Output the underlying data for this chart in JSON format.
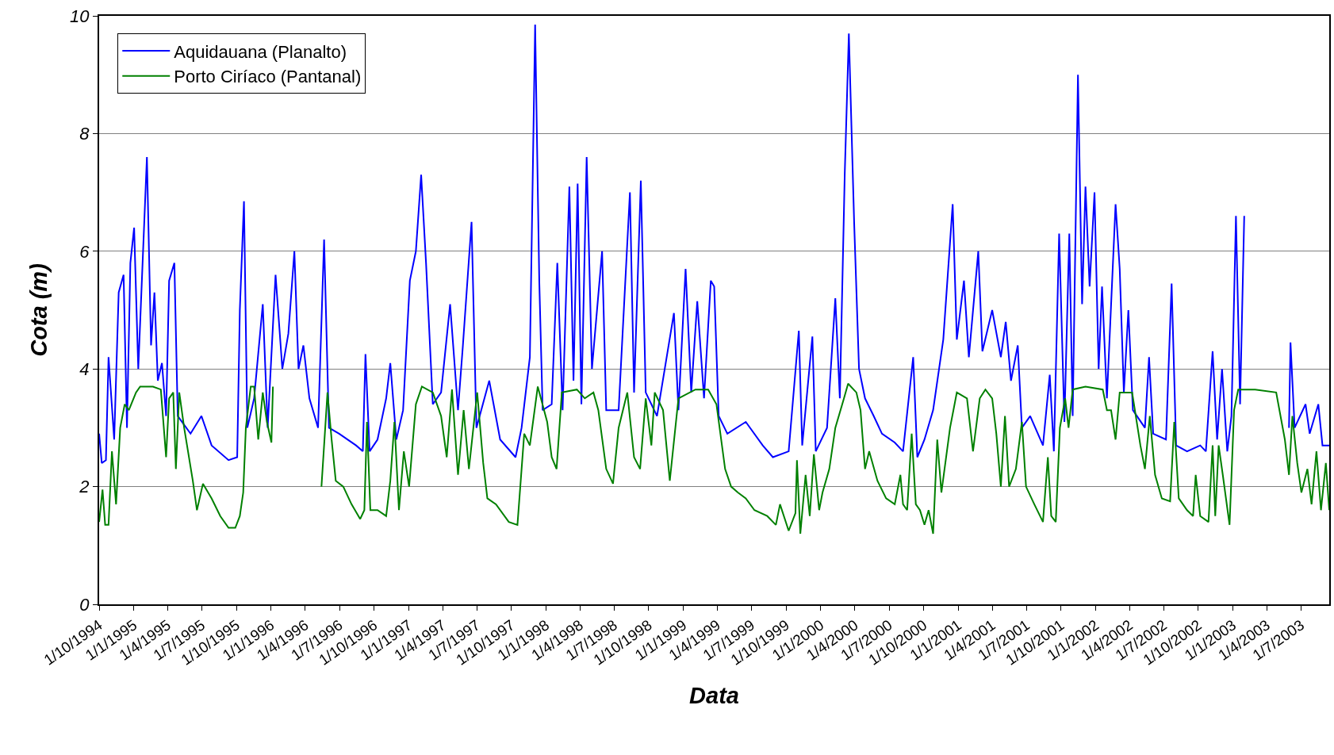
{
  "chart_data": {
    "type": "line",
    "xlabel": "Data",
    "ylabel": "Cota (m)",
    "xlim": [
      "1994-10-01",
      "2003-09-14"
    ],
    "xticks": [
      {
        "value": "1994-10-01",
        "label": "1/10/1994"
      },
      {
        "value": "1995-01-01",
        "label": "1/1/1995"
      },
      {
        "value": "1995-04-01",
        "label": "1/4/1995"
      },
      {
        "value": "1995-07-01",
        "label": "1/7/1995"
      },
      {
        "value": "1995-10-01",
        "label": "1/10/1995"
      },
      {
        "value": "1996-01-01",
        "label": "1/1/1996"
      },
      {
        "value": "1996-04-01",
        "label": "1/4/1996"
      },
      {
        "value": "1996-07-01",
        "label": "1/7/1996"
      },
      {
        "value": "1996-10-01",
        "label": "1/10/1996"
      },
      {
        "value": "1997-01-01",
        "label": "1/1/1997"
      },
      {
        "value": "1997-04-01",
        "label": "1/4/1997"
      },
      {
        "value": "1997-07-01",
        "label": "1/7/1997"
      },
      {
        "value": "1997-10-01",
        "label": "1/10/1997"
      },
      {
        "value": "1998-01-01",
        "label": "1/1/1998"
      },
      {
        "value": "1998-04-01",
        "label": "1/4/1998"
      },
      {
        "value": "1998-07-01",
        "label": "1/7/1998"
      },
      {
        "value": "1998-10-01",
        "label": "1/10/1998"
      },
      {
        "value": "1999-01-01",
        "label": "1/1/1999"
      },
      {
        "value": "1999-04-01",
        "label": "1/4/1999"
      },
      {
        "value": "1999-07-01",
        "label": "1/7/1999"
      },
      {
        "value": "1999-10-01",
        "label": "1/10/1999"
      },
      {
        "value": "2000-01-01",
        "label": "1/1/2000"
      },
      {
        "value": "2000-04-01",
        "label": "1/4/2000"
      },
      {
        "value": "2000-07-01",
        "label": "1/7/2000"
      },
      {
        "value": "2000-10-01",
        "label": "1/10/2000"
      },
      {
        "value": "2001-01-01",
        "label": "1/1/2001"
      },
      {
        "value": "2001-04-01",
        "label": "1/4/2001"
      },
      {
        "value": "2001-07-01",
        "label": "1/7/2001"
      },
      {
        "value": "2001-10-01",
        "label": "1/10/2001"
      },
      {
        "value": "2002-01-01",
        "label": "1/1/2002"
      },
      {
        "value": "2002-04-01",
        "label": "1/4/2002"
      },
      {
        "value": "2002-07-01",
        "label": "1/7/2002"
      },
      {
        "value": "2002-10-01",
        "label": "1/10/2002"
      },
      {
        "value": "2003-01-01",
        "label": "1/1/2003"
      },
      {
        "value": "2003-04-01",
        "label": "1/4/2003"
      },
      {
        "value": "2003-07-01",
        "label": "1/7/2003"
      }
    ],
    "ylim": [
      0,
      10
    ],
    "yticks": [
      0,
      2,
      4,
      6,
      8,
      10
    ],
    "grid": "y",
    "legend": "top left",
    "marker": "none",
    "line_style": "solid",
    "series": [
      {
        "name": "Aquidauana (Planalto)",
        "color": "#0000ff",
        "x": [
          "1994-10-01",
          "1994-10-08",
          "1994-10-19",
          "1994-10-26",
          "1994-11-10",
          "1994-11-22",
          "1994-12-05",
          "1994-12-14",
          "1994-12-23",
          "1995-01-02",
          "1995-01-13",
          "1995-02-05",
          "1995-02-16",
          "1995-02-25",
          "1995-03-06",
          "1995-03-17",
          "1995-03-28",
          "1995-04-05",
          "1995-04-19",
          "1995-04-28",
          "1995-06-01",
          "1995-06-30",
          "1995-07-27",
          "1995-09-10",
          "1995-10-03",
          "1995-10-10",
          "1995-10-21",
          "1995-10-30",
          "1995-11-17",
          "1995-12-10",
          "1995-12-23",
          "1996-01-13",
          "1996-01-31",
          "1996-02-16",
          "1996-03-03",
          "1996-03-14",
          "1996-03-27",
          "1996-04-12",
          "1996-05-05",
          "1996-05-21",
          "1996-06-03",
          "1996-06-30",
          "1996-08-14",
          "1996-09-01",
          "1996-09-08",
          "1996-09-19",
          "1996-10-10",
          "1996-11-02",
          "1996-11-13",
          "1996-11-29",
          "1996-12-17",
          "1997-01-04",
          "1997-01-20",
          "1997-02-03",
          "1997-02-16",
          "1997-03-06",
          "1997-03-28",
          "1997-04-21",
          "1997-05-12",
          "1997-05-25",
          "1997-06-17",
          "1997-06-30",
          "1997-08-03",
          "1997-09-01",
          "1997-10-12",
          "1997-10-28",
          "1997-11-19",
          "1997-12-03",
          "1997-12-14",
          "1997-12-23",
          "1998-01-16",
          "1998-01-31",
          "1998-02-14",
          "1998-03-04",
          "1998-03-15",
          "1998-03-26",
          "1998-04-05",
          "1998-04-19",
          "1998-05-03",
          "1998-05-30",
          "1998-06-10",
          "1998-07-13",
          "1998-08-12",
          "1998-08-23",
          "1998-09-10",
          "1998-09-23",
          "1998-10-23",
          "1998-12-07",
          "1998-12-19",
          "1999-01-07",
          "1999-01-22",
          "1999-02-07",
          "1999-02-25",
          "1999-03-15",
          "1999-03-24",
          "1999-04-05",
          "1999-04-28",
          "1999-06-16",
          "1999-07-31",
          "1999-08-27",
          "1999-10-08",
          "1999-11-04",
          "1999-11-13",
          "1999-12-10",
          "1999-12-19",
          "2000-01-18",
          "2000-02-09",
          "2000-02-21",
          "2000-03-05",
          "2000-03-16",
          "2000-03-30",
          "2000-04-12",
          "2000-04-28",
          "2000-05-21",
          "2000-06-12",
          "2000-07-16",
          "2000-08-07",
          "2000-09-03",
          "2000-09-14",
          "2000-10-03",
          "2000-10-26",
          "2000-11-22",
          "2000-12-17",
          "2000-12-28",
          "2001-01-16",
          "2001-01-29",
          "2001-02-23",
          "2001-03-06",
          "2001-04-01",
          "2001-04-24",
          "2001-05-07",
          "2001-05-21",
          "2001-06-08",
          "2001-06-19",
          "2001-07-11",
          "2001-08-14",
          "2001-09-01",
          "2001-09-12",
          "2001-09-26",
          "2001-10-10",
          "2001-10-23",
          "2001-11-01",
          "2001-11-15",
          "2001-11-26",
          "2001-12-05",
          "2001-12-16",
          "2001-12-29",
          "2002-01-09",
          "2002-01-18",
          "2002-01-31",
          "2002-02-23",
          "2002-03-06",
          "2002-03-17",
          "2002-03-29",
          "2002-04-10",
          "2002-05-12",
          "2002-05-23",
          "2002-06-03",
          "2002-07-07",
          "2002-07-22",
          "2002-08-03",
          "2002-09-01",
          "2002-10-06",
          "2002-10-21",
          "2002-11-08",
          "2002-11-20",
          "2002-12-03",
          "2002-12-17",
          "2002-12-28",
          "2003-01-09",
          "2003-01-20",
          "2003-01-31",
          "2003-03-01",
          "2003-05-30",
          "2003-06-03",
          "2003-06-14",
          "2003-07-13",
          "2003-07-24",
          "2003-08-16",
          "2003-08-27",
          "2003-09-14"
        ],
        "values": [
          2.9,
          2.4,
          2.45,
          4.2,
          2.8,
          5.3,
          5.6,
          3.0,
          5.8,
          6.4,
          4.0,
          7.6,
          4.4,
          5.3,
          3.8,
          4.1,
          3.2,
          5.5,
          5.8,
          3.2,
          2.9,
          3.2,
          2.7,
          2.45,
          2.5,
          5.0,
          6.85,
          3.0,
          3.5,
          5.1,
          3.0,
          5.6,
          4.0,
          4.6,
          6.0,
          4.0,
          4.4,
          3.5,
          3.0,
          6.2,
          3.0,
          2.9,
          2.7,
          2.6,
          4.25,
          2.6,
          2.8,
          3.5,
          4.1,
          2.8,
          3.3,
          5.5,
          6.0,
          7.3,
          5.8,
          3.4,
          3.6,
          5.1,
          3.3,
          4.4,
          6.5,
          3.0,
          3.8,
          2.8,
          2.5,
          3.0,
          4.2,
          9.85,
          5.5,
          3.3,
          3.4,
          5.8,
          3.3,
          7.1,
          3.8,
          7.15,
          3.4,
          7.6,
          4.0,
          6.0,
          3.3,
          3.3,
          7.0,
          3.6,
          7.2,
          3.6,
          3.2,
          4.95,
          3.3,
          5.7,
          3.6,
          5.15,
          3.5,
          5.5,
          5.4,
          3.2,
          2.9,
          3.1,
          2.7,
          2.5,
          2.6,
          4.65,
          2.7,
          4.55,
          2.6,
          3.0,
          5.2,
          3.5,
          7.3,
          9.7,
          6.5,
          4.0,
          3.5,
          3.2,
          2.9,
          2.75,
          2.6,
          4.2,
          2.5,
          2.8,
          3.3,
          4.5,
          6.8,
          4.5,
          5.5,
          4.2,
          6.0,
          4.3,
          5.0,
          4.2,
          4.8,
          3.8,
          4.4,
          3.0,
          3.2,
          2.7,
          3.9,
          2.6,
          6.3,
          3.1,
          6.3,
          3.2,
          9.0,
          5.1,
          7.1,
          5.4,
          7.0,
          4.0,
          5.4,
          3.5,
          6.8,
          5.7,
          3.6,
          5.0,
          3.3,
          3.0,
          4.2,
          2.9,
          2.8,
          5.45,
          2.7,
          2.6,
          2.7,
          2.6,
          4.3,
          2.8,
          4.0,
          2.6,
          3.2,
          6.6,
          3.4,
          6.6,
          null,
          3.0,
          4.45,
          3.0,
          3.4,
          2.9,
          3.4,
          2.7,
          2.7
        ]
      },
      {
        "name": "Porto Ciríaco (Pantanal)",
        "color": "#008000",
        "x": [
          "1994-10-01",
          "1994-10-10",
          "1994-10-17",
          "1994-10-26",
          "1994-11-04",
          "1994-11-15",
          "1994-11-26",
          "1994-12-08",
          "1994-12-19",
          "1995-01-07",
          "1995-01-18",
          "1995-02-21",
          "1995-03-14",
          "1995-03-28",
          "1995-04-05",
          "1995-04-16",
          "1995-04-23",
          "1995-05-02",
          "1995-05-15",
          "1995-06-07",
          "1995-06-18",
          "1995-07-04",
          "1995-07-27",
          "1995-08-19",
          "1995-09-10",
          "1995-09-28",
          "1995-10-10",
          "1995-10-19",
          "1995-10-26",
          "1995-11-08",
          "1995-11-17",
          "1995-11-28",
          "1995-12-10",
          "1995-12-21",
          "1996-01-02",
          "1996-01-06",
          "1996-03-15",
          "1996-05-14",
          "1996-05-30",
          "1996-06-10",
          "1996-06-21",
          "1996-07-11",
          "1996-08-02",
          "1996-08-25",
          "1996-09-05",
          "1996-09-12",
          "1996-09-21",
          "1996-10-10",
          "1996-11-02",
          "1996-11-13",
          "1996-11-24",
          "1996-12-06",
          "1996-12-19",
          "1997-01-02",
          "1997-01-20",
          "1997-02-05",
          "1997-03-06",
          "1997-03-28",
          "1997-04-12",
          "1997-04-26",
          "1997-05-12",
          "1997-05-27",
          "1997-06-10",
          "1997-07-02",
          "1997-07-18",
          "1997-07-29",
          "1997-08-21",
          "1997-09-24",
          "1997-10-17",
          "1997-11-04",
          "1997-11-19",
          "1997-12-10",
          "1998-01-04",
          "1998-01-16",
          "1998-01-29",
          "1998-02-12",
          "1998-03-24",
          "1998-04-14",
          "1998-05-07",
          "1998-05-20",
          "1998-06-10",
          "1998-06-28",
          "1998-07-13",
          "1998-08-05",
          "1998-08-23",
          "1998-09-08",
          "1998-09-23",
          "1998-10-08",
          "1998-10-17",
          "1998-11-08",
          "1998-11-26",
          "1998-12-19",
          "1999-02-02",
          "1999-03-08",
          "1999-03-30",
          "1999-04-22",
          "1999-05-08",
          "1999-05-26",
          "1999-06-16",
          "1999-07-09",
          "1999-08-12",
          "1999-09-04",
          "1999-09-15",
          "1999-10-08",
          "1999-10-26",
          "1999-10-30",
          "1999-11-08",
          "1999-11-22",
          "1999-12-03",
          "1999-12-14",
          "1999-12-28",
          "2000-01-06",
          "2000-01-24",
          "2000-02-09",
          "2000-03-03",
          "2000-03-14",
          "2000-04-05",
          "2000-04-16",
          "2000-04-28",
          "2000-05-09",
          "2000-05-31",
          "2000-06-23",
          "2000-07-16",
          "2000-07-31",
          "2000-08-07",
          "2000-08-18",
          "2000-08-30",
          "2000-09-10",
          "2000-09-21",
          "2000-10-03",
          "2000-10-14",
          "2000-10-26",
          "2000-11-06",
          "2000-11-17",
          "2000-12-10",
          "2000-12-28",
          "2001-01-24",
          "2001-02-09",
          "2001-02-27",
          "2001-03-14",
          "2001-04-01",
          "2001-04-12",
          "2001-04-24",
          "2001-05-05",
          "2001-05-16",
          "2001-06-03",
          "2001-06-19",
          "2001-06-30",
          "2001-07-22",
          "2001-08-14",
          "2001-08-27",
          "2001-09-05",
          "2001-09-17",
          "2001-09-28",
          "2001-10-12",
          "2001-10-21",
          "2001-11-01",
          "2001-12-05",
          "2002-01-20",
          "2002-01-31",
          "2002-02-11",
          "2002-02-23",
          "2002-03-06",
          "2002-04-08",
          "2002-04-30",
          "2002-05-12",
          "2002-05-25",
          "2002-06-08",
          "2002-06-26",
          "2002-07-18",
          "2002-07-29",
          "2002-08-10",
          "2002-09-01",
          "2002-09-17",
          "2002-09-24",
          "2002-10-06",
          "2002-10-28",
          "2002-11-08",
          "2002-11-15",
          "2002-11-24",
          "2002-12-05",
          "2002-12-23",
          "2003-01-04",
          "2003-01-15",
          "2003-03-01",
          "2003-04-26",
          "2003-05-19",
          "2003-05-30",
          "2003-06-08",
          "2003-06-21",
          "2003-07-02",
          "2003-07-18",
          "2003-07-29",
          "2003-08-11",
          "2003-08-23",
          "2003-09-05",
          "2003-09-14"
        ],
        "values": [
          1.4,
          1.95,
          1.35,
          1.35,
          2.6,
          1.7,
          3.0,
          3.4,
          3.3,
          3.6,
          3.7,
          3.7,
          3.65,
          2.5,
          3.5,
          3.6,
          2.3,
          3.6,
          3.0,
          2.1,
          1.6,
          2.05,
          1.8,
          1.5,
          1.3,
          1.3,
          1.5,
          1.9,
          3.0,
          3.7,
          3.7,
          2.8,
          3.6,
          3.1,
          2.75,
          3.7,
          null,
          2.0,
          3.6,
          2.8,
          2.1,
          2.0,
          1.7,
          1.45,
          1.6,
          3.1,
          1.6,
          1.6,
          1.5,
          2.1,
          3.1,
          1.6,
          2.6,
          2.0,
          3.4,
          3.7,
          3.6,
          3.2,
          2.5,
          3.65,
          2.2,
          3.3,
          2.3,
          3.6,
          2.4,
          1.8,
          1.7,
          1.4,
          1.35,
          2.9,
          2.7,
          3.7,
          3.1,
          2.5,
          2.3,
          3.6,
          3.65,
          3.5,
          3.6,
          3.3,
          2.3,
          2.05,
          3.0,
          3.6,
          2.5,
          2.3,
          3.5,
          2.7,
          3.6,
          3.3,
          2.1,
          3.5,
          3.65,
          3.65,
          3.4,
          2.3,
          2.0,
          1.9,
          1.8,
          1.6,
          1.5,
          1.35,
          1.7,
          1.25,
          1.55,
          2.45,
          1.2,
          2.2,
          1.5,
          2.55,
          1.6,
          1.9,
          2.3,
          3.0,
          3.5,
          3.75,
          3.6,
          3.3,
          2.3,
          2.6,
          2.1,
          1.8,
          1.7,
          2.2,
          1.7,
          1.6,
          2.9,
          1.7,
          1.6,
          1.35,
          1.6,
          1.2,
          2.8,
          1.9,
          3.0,
          3.6,
          3.5,
          2.6,
          3.5,
          3.65,
          3.5,
          2.9,
          2.0,
          3.2,
          2.0,
          2.3,
          3.1,
          2.0,
          1.7,
          1.4,
          2.5,
          1.5,
          1.4,
          3.0,
          3.5,
          3.0,
          3.65,
          3.7,
          3.65,
          3.3,
          3.3,
          2.8,
          3.6,
          3.6,
          2.7,
          2.3,
          3.2,
          2.2,
          1.8,
          1.75,
          3.1,
          1.8,
          1.6,
          1.5,
          2.2,
          1.5,
          1.4,
          2.7,
          1.5,
          2.7,
          2.2,
          1.35,
          3.3,
          3.65,
          3.65,
          3.6,
          2.8,
          2.2,
          3.2,
          2.4,
          1.9,
          2.3,
          1.7,
          2.6,
          1.6,
          2.4,
          1.6
        ]
      }
    ]
  }
}
